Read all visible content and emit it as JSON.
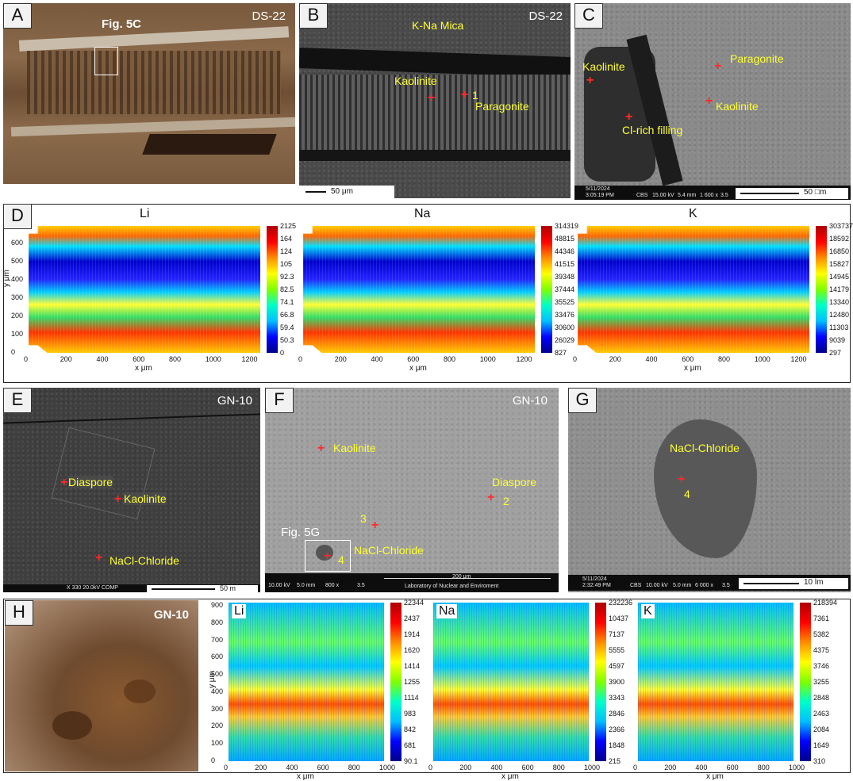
{
  "panels": {
    "A": {
      "tag": "A",
      "sample": "DS-22",
      "fig_ref": "Fig. 5C"
    },
    "B": {
      "tag": "B",
      "sample": "DS-22",
      "mineral_top": "K-Na Mica",
      "labels": [
        "Kaolinite",
        "Paragonite"
      ],
      "point": "1",
      "scale": "50 μm"
    },
    "C": {
      "tag": "C",
      "labels": [
        "Kaolinite",
        "Paragonite",
        "Kaolinite",
        "Cl-rich filling"
      ],
      "scale": "50 □m",
      "info": {
        "date": "5/11/2024",
        "time": "3:05:19 PM",
        "det": "CBS",
        "hv": "15.00 kV",
        "wd": "5.4 mm",
        "mag": "1 600 x",
        "spot": "3.5"
      }
    },
    "D": {
      "tag": "D",
      "maps": [
        {
          "title": "Li",
          "ticks": [
            "2125",
            "164",
            "124",
            "105",
            "92.3",
            "82.5",
            "74.1",
            "66.8",
            "59.4",
            "50.3",
            "0"
          ]
        },
        {
          "title": "Na",
          "ticks": [
            "314319",
            "48815",
            "44346",
            "41515",
            "39348",
            "37444",
            "35525",
            "33476",
            "30600",
            "26029",
            "827"
          ]
        },
        {
          "title": "K",
          "ticks": [
            "303737",
            "18592",
            "16850",
            "15827",
            "14945",
            "14179",
            "13340",
            "12480",
            "11303",
            "9039",
            "297"
          ]
        }
      ],
      "xaxis": {
        "label": "x μm",
        "ticks": [
          "0",
          "200",
          "400",
          "600",
          "800",
          "1000",
          "1200"
        ]
      },
      "yaxis": {
        "label": "y μm",
        "ticks": [
          "0",
          "100",
          "200",
          "300",
          "400",
          "500",
          "600"
        ]
      }
    },
    "E": {
      "tag": "E",
      "sample": "GN-10",
      "labels": [
        "Diaspore",
        "Kaolinite",
        "NaCl-Chloride"
      ],
      "info": "X 330     20.0kV COMP",
      "scale": "50    m"
    },
    "F": {
      "tag": "F",
      "sample": "GN-10",
      "labels": [
        "Kaolinite",
        "Diaspore",
        "NaCl-Chloride"
      ],
      "points": [
        "2",
        "3",
        "4"
      ],
      "fig_ref": "Fig. 5G",
      "info": {
        "hv": "10.00 kV",
        "wd": "5.0 mm",
        "mag": "800 x",
        "spot": "3.5",
        "scale": "200 μm",
        "lab": "Laboratory of Nuclear and Enviroment"
      }
    },
    "G": {
      "tag": "G",
      "labels": [
        "NaCl-Chloride"
      ],
      "point": "4",
      "scale": "10    lm",
      "info": {
        "date": "5/11/2024",
        "time": "2:32:49 PM",
        "det": "CBS",
        "hv": "10.00 kV",
        "wd": "5.0 mm",
        "mag": "6 000 x",
        "spot": "3.5"
      }
    },
    "H": {
      "tag": "H",
      "sample": "GN-10",
      "maps": [
        {
          "title": "Li",
          "ticks": [
            "22344",
            "2437",
            "1914",
            "1620",
            "1414",
            "1255",
            "1114",
            "983",
            "842",
            "681",
            "90.1"
          ]
        },
        {
          "title": "Na",
          "ticks": [
            "232236",
            "10437",
            "7137",
            "5555",
            "4597",
            "3900",
            "3343",
            "2846",
            "2366",
            "1848",
            "215"
          ]
        },
        {
          "title": "K",
          "ticks": [
            "218394",
            "7361",
            "5382",
            "4375",
            "3746",
            "3255",
            "2848",
            "2463",
            "2084",
            "1649",
            "310"
          ]
        }
      ],
      "xaxis": {
        "label": "x μm",
        "ticks": [
          "0",
          "200",
          "400",
          "600",
          "800",
          "1000"
        ]
      },
      "yaxis": {
        "label": "y μm",
        "ticks": [
          "0",
          "100",
          "200",
          "300",
          "400",
          "500",
          "600",
          "700",
          "800",
          "900"
        ]
      }
    }
  }
}
